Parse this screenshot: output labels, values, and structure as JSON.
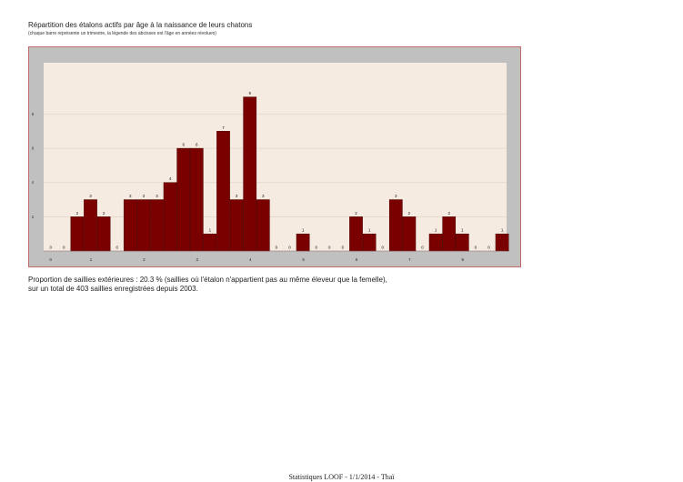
{
  "header": {
    "title": "Répartition des étalons actifs par âge à la naissance de leurs chatons",
    "subtitle": "(chaque barre représente un trimestre, la légende des abcisses est l'âge en années révolues)"
  },
  "notes": {
    "line1": "Proportion de saillies extérieures : 20.3 % (saillies où l'étalon n'appartient pas au même éleveur que la femelle),",
    "line2": "sur un total de 403 saillies enregistrées depuis 2003."
  },
  "footer": {
    "text": "Statistiques LOOF - 1/1/2014 - Thaï"
  },
  "colors": {
    "bar": "#7a0000",
    "plot_bg": "#f6ebe1",
    "frame": "#c0c0c0",
    "border": "#c26a6a"
  },
  "chart_data": {
    "type": "bar",
    "title": "Répartition des étalons actifs par âge à la naissance de leurs chatons",
    "xlabel": "",
    "ylabel": "",
    "values": [
      0,
      0,
      2,
      3,
      2,
      0,
      3,
      3,
      3,
      4,
      6,
      6,
      1,
      7,
      3,
      9,
      3,
      0,
      0,
      1,
      0,
      0,
      0,
      2,
      1,
      0,
      3,
      2,
      0,
      1,
      2,
      1,
      0,
      0,
      1
    ],
    "x_ticks": [
      {
        "label": "1",
        "index": 4
      },
      {
        "label": "2",
        "index": 8
      },
      {
        "label": "3",
        "index": 12
      },
      {
        "label": "4",
        "index": 16
      },
      {
        "label": "5",
        "index": 20
      },
      {
        "label": "6",
        "index": 24
      },
      {
        "label": "7",
        "index": 28
      },
      {
        "label": "8",
        "index": 32
      }
    ],
    "y_ticks": [
      2,
      4,
      6,
      8
    ],
    "ylim": [
      0,
      11
    ],
    "grid": true,
    "legend": "none"
  }
}
